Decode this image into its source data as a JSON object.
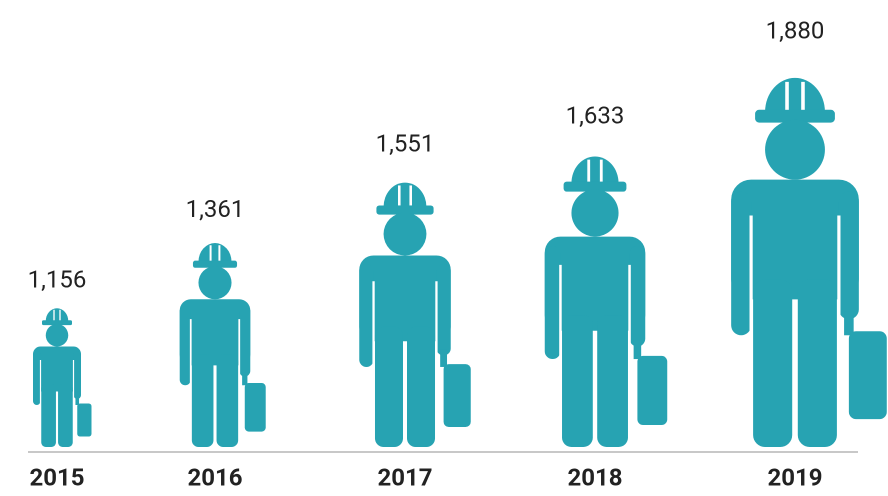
{
  "chart_data": {
    "type": "pictograph",
    "categories": [
      "2015",
      "2016",
      "2017",
      "2018",
      "2019"
    ],
    "values": [
      1156,
      1361,
      1551,
      1633,
      1880
    ],
    "value_labels": [
      "1,156",
      "1,361",
      "1,551",
      "1,633",
      "1,880"
    ],
    "color": "#27a3b2",
    "ylim": [
      720,
      2000
    ]
  }
}
